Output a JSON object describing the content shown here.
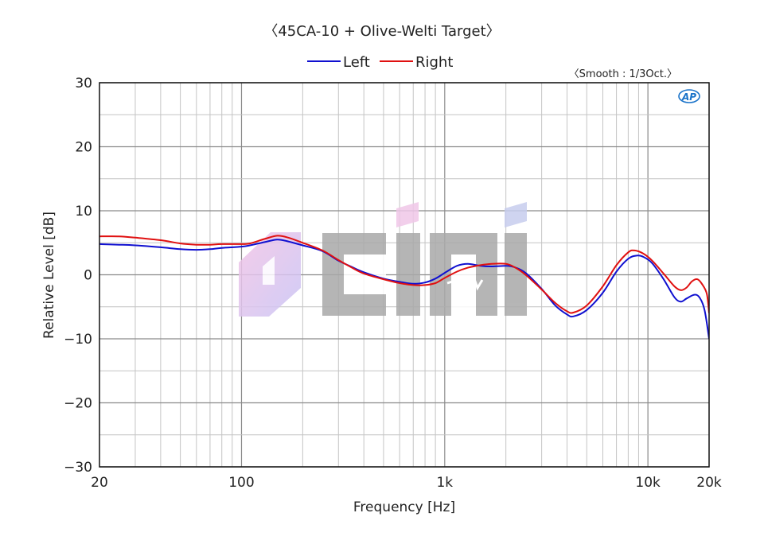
{
  "chart_data": {
    "type": "line",
    "title": "〈45CA-10 + Olive-Welti Target〉",
    "smoothing_note": "〈Smooth : 1/3Oct.〉",
    "xlabel": "Frequency [Hz]",
    "ylabel": "Relative Level [dB]",
    "x_scale": "log",
    "xlim": [
      20,
      20000
    ],
    "ylim": [
      -30,
      30
    ],
    "x_ticks": [
      {
        "value": 20,
        "label": "20"
      },
      {
        "value": 100,
        "label": "100"
      },
      {
        "value": 1000,
        "label": "1k"
      },
      {
        "value": 10000,
        "label": "10k"
      },
      {
        "value": 20000,
        "label": "20k"
      }
    ],
    "y_ticks": [
      {
        "value": 30,
        "label": "30"
      },
      {
        "value": 20,
        "label": "20"
      },
      {
        "value": 10,
        "label": "10"
      },
      {
        "value": 0,
        "label": "0"
      },
      {
        "value": -10,
        "label": "−10"
      },
      {
        "value": -20,
        "label": "−20"
      },
      {
        "value": -30,
        "label": "−30"
      }
    ],
    "grid": true,
    "legend_position": "top-center",
    "logo_text": "AP",
    "watermark_text": "Δiii",
    "series": [
      {
        "name": "Left",
        "color": "#1010d0",
        "points": [
          [
            20,
            4.8
          ],
          [
            25,
            4.7
          ],
          [
            30,
            4.6
          ],
          [
            40,
            4.3
          ],
          [
            50,
            4.0
          ],
          [
            60,
            3.9
          ],
          [
            70,
            4.0
          ],
          [
            80,
            4.2
          ],
          [
            100,
            4.4
          ],
          [
            110,
            4.6
          ],
          [
            130,
            5.1
          ],
          [
            150,
            5.5
          ],
          [
            170,
            5.2
          ],
          [
            200,
            4.6
          ],
          [
            250,
            3.7
          ],
          [
            300,
            2.2
          ],
          [
            350,
            1.2
          ],
          [
            400,
            0.4
          ],
          [
            500,
            -0.6
          ],
          [
            600,
            -1.1
          ],
          [
            700,
            -1.4
          ],
          [
            800,
            -1.2
          ],
          [
            900,
            -0.6
          ],
          [
            1000,
            0.3
          ],
          [
            1150,
            1.4
          ],
          [
            1300,
            1.7
          ],
          [
            1500,
            1.4
          ],
          [
            1700,
            1.3
          ],
          [
            2000,
            1.4
          ],
          [
            2200,
            1.2
          ],
          [
            2500,
            0.3
          ],
          [
            3000,
            -2.2
          ],
          [
            3500,
            -4.8
          ],
          [
            4000,
            -6.2
          ],
          [
            4300,
            -6.5
          ],
          [
            5000,
            -5.5
          ],
          [
            6000,
            -2.8
          ],
          [
            7000,
            0.5
          ],
          [
            8000,
            2.5
          ],
          [
            8800,
            3.0
          ],
          [
            9500,
            2.8
          ],
          [
            10500,
            1.8
          ],
          [
            12000,
            -0.8
          ],
          [
            13500,
            -3.5
          ],
          [
            14500,
            -4.2
          ],
          [
            15500,
            -3.7
          ],
          [
            17000,
            -3.1
          ],
          [
            18000,
            -3.6
          ],
          [
            19000,
            -5.5
          ],
          [
            20000,
            -10.0
          ]
        ]
      },
      {
        "name": "Right",
        "color": "#e01010",
        "points": [
          [
            20,
            6.0
          ],
          [
            25,
            6.0
          ],
          [
            30,
            5.8
          ],
          [
            40,
            5.4
          ],
          [
            50,
            4.9
          ],
          [
            60,
            4.7
          ],
          [
            70,
            4.7
          ],
          [
            80,
            4.8
          ],
          [
            100,
            4.8
          ],
          [
            110,
            4.9
          ],
          [
            130,
            5.6
          ],
          [
            150,
            6.1
          ],
          [
            170,
            5.8
          ],
          [
            200,
            5.0
          ],
          [
            250,
            3.8
          ],
          [
            300,
            2.3
          ],
          [
            350,
            1.1
          ],
          [
            400,
            0.2
          ],
          [
            500,
            -0.7
          ],
          [
            600,
            -1.3
          ],
          [
            700,
            -1.6
          ],
          [
            800,
            -1.6
          ],
          [
            900,
            -1.3
          ],
          [
            1000,
            -0.5
          ],
          [
            1150,
            0.5
          ],
          [
            1300,
            1.1
          ],
          [
            1500,
            1.5
          ],
          [
            1700,
            1.7
          ],
          [
            2000,
            1.7
          ],
          [
            2200,
            1.2
          ],
          [
            2500,
            0.0
          ],
          [
            3000,
            -2.3
          ],
          [
            3500,
            -4.4
          ],
          [
            4000,
            -5.7
          ],
          [
            4300,
            -5.9
          ],
          [
            5000,
            -4.8
          ],
          [
            6000,
            -1.8
          ],
          [
            7000,
            1.5
          ],
          [
            8000,
            3.5
          ],
          [
            8600,
            3.8
          ],
          [
            9500,
            3.3
          ],
          [
            10500,
            2.2
          ],
          [
            12000,
            0.1
          ],
          [
            13500,
            -1.8
          ],
          [
            14500,
            -2.4
          ],
          [
            15500,
            -2.0
          ],
          [
            16500,
            -1.0
          ],
          [
            17500,
            -0.7
          ],
          [
            18500,
            -1.5
          ],
          [
            19500,
            -3.0
          ],
          [
            20000,
            -6.0
          ]
        ]
      }
    ]
  }
}
